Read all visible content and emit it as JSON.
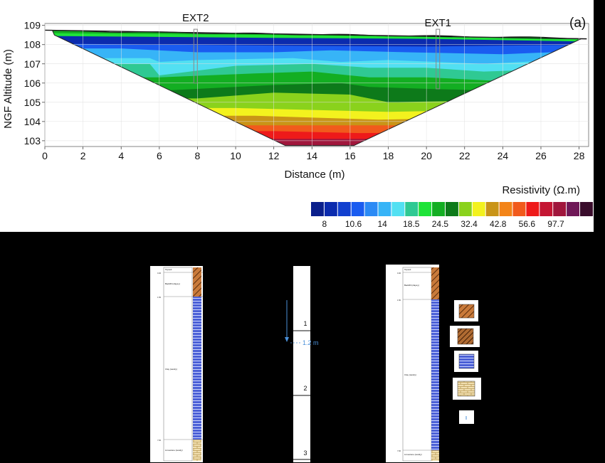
{
  "panel_label": "(a)",
  "section": {
    "xlabel": "Distance (m)",
    "ylabel": "NGF Altitude (m)",
    "x_ticks": [
      "0",
      "2",
      "4",
      "6",
      "8",
      "10",
      "12",
      "14",
      "16",
      "18",
      "20",
      "22",
      "24",
      "26",
      "28"
    ],
    "y_ticks": [
      "103",
      "104",
      "105",
      "106",
      "107",
      "108",
      "109"
    ],
    "xlim": [
      0,
      28.5
    ],
    "ylim": [
      102.7,
      109.1
    ],
    "boreholes": [
      {
        "name": "EXT2",
        "x": 7.9
      },
      {
        "name": "EXT1",
        "x": 20.6
      }
    ]
  },
  "colorbar": {
    "title": "Resistivity (Ω.m)",
    "colors": [
      "#0a1f8c",
      "#0b2bae",
      "#1240cf",
      "#1a5cf0",
      "#2b8af5",
      "#37b4f7",
      "#52e0f2",
      "#2fc993",
      "#1fe339",
      "#13ae22",
      "#0d7a1a",
      "#8ad21c",
      "#f3f21e",
      "#c99417",
      "#f38418",
      "#f15a1c",
      "#ee1a1a",
      "#c41633",
      "#a0163c",
      "#6f1857",
      "#3a0d2c"
    ],
    "labels": [
      "8",
      "10.6",
      "14",
      "18.5",
      "24.5",
      "32.4",
      "42.8",
      "56.6",
      "97.7"
    ]
  },
  "logs": {
    "left": {
      "units": [
        "Topsoil",
        "Backfill (clayey)",
        "Clay (sandy)",
        "Limestone (sandy)"
      ],
      "depths": [
        "0.40",
        "1.50",
        "7.00"
      ]
    },
    "middle": {
      "marks": [
        "1",
        "2",
        "3"
      ],
      "water_level": "1.2 m"
    },
    "right": {
      "units": [
        "Topsoil",
        "Backfill (clayey)",
        "Clay (sandy)",
        "Limestone (sandy)"
      ],
      "depths": [
        "0.40",
        "1.50",
        "7.00"
      ]
    }
  }
}
